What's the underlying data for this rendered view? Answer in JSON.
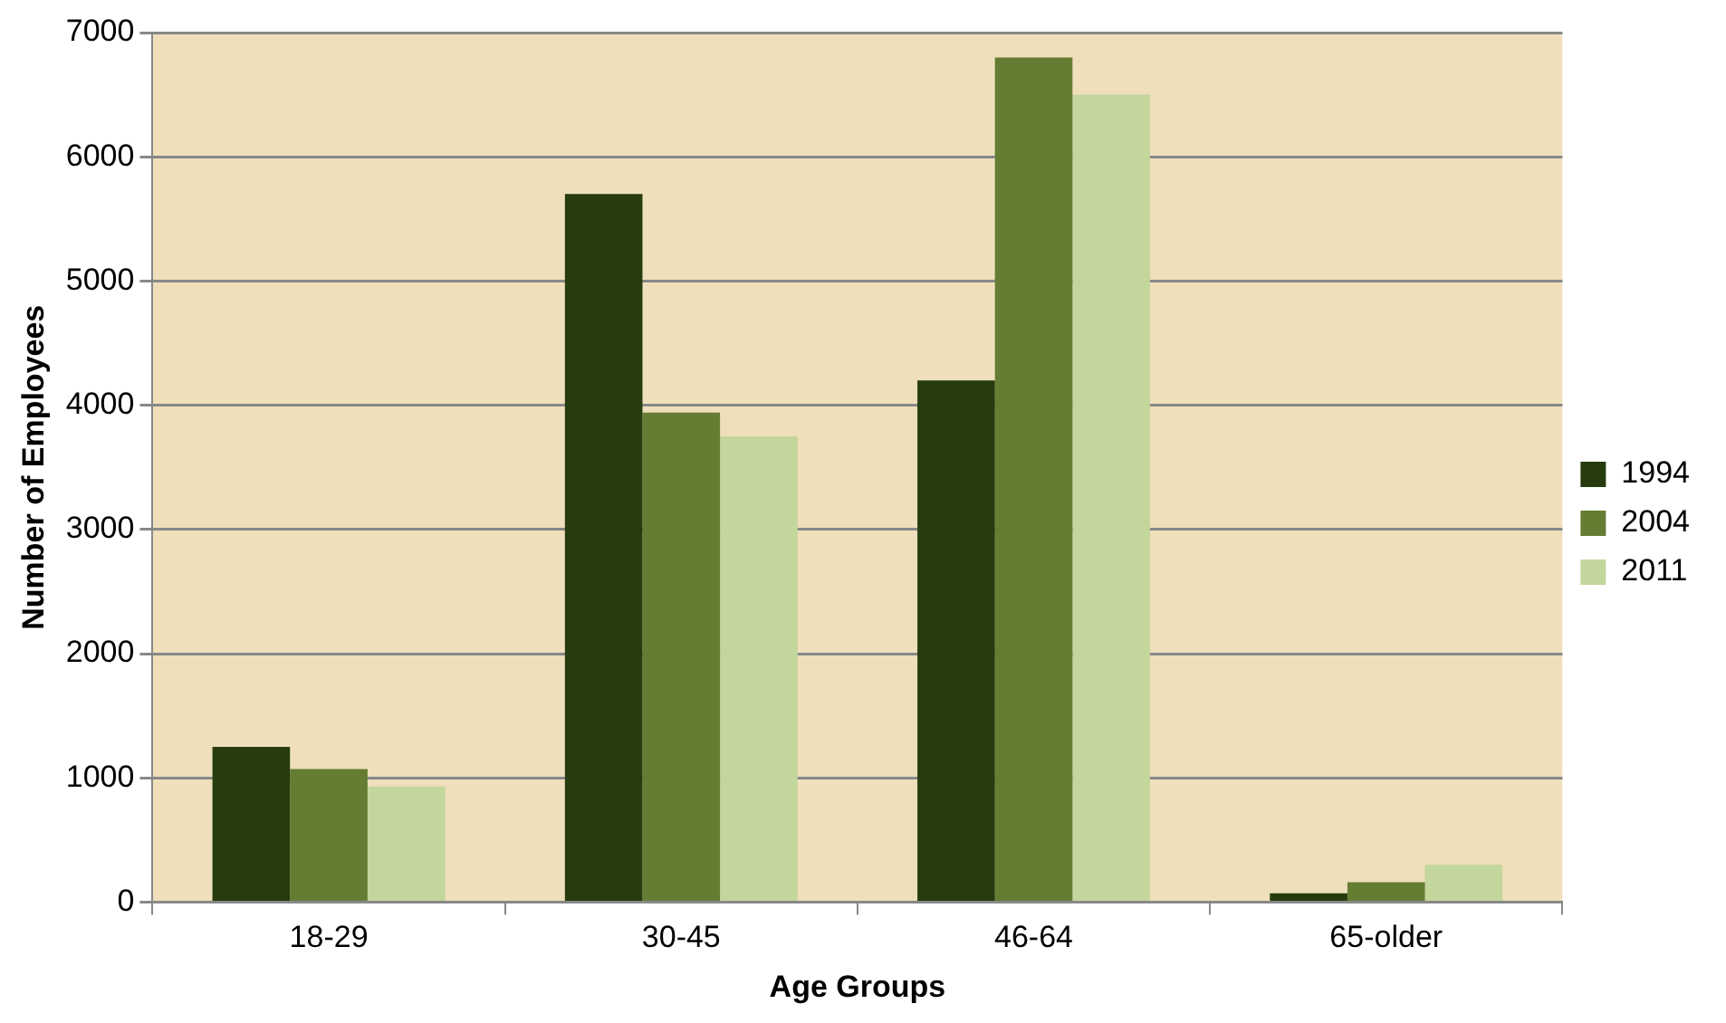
{
  "chart_data": {
    "type": "bar",
    "xlabel": "Age Groups",
    "ylabel": "Number of Employees",
    "categories": [
      "18-29",
      "30-45",
      "46-64",
      "65-older"
    ],
    "series": [
      {
        "name": "1994",
        "color": "#263c0f",
        "values": [
          1250,
          5700,
          4200,
          70
        ]
      },
      {
        "name": "2004",
        "color": "#657d32",
        "values": [
          1070,
          3940,
          6800,
          160
        ]
      },
      {
        "name": "2011",
        "color": "#c3d69b",
        "values": [
          930,
          3750,
          6500,
          300
        ]
      }
    ],
    "ylim": [
      0,
      7000
    ],
    "yticks": [
      0,
      1000,
      2000,
      3000,
      4000,
      5000,
      6000,
      7000
    ],
    "grid": "y",
    "legend": "right"
  }
}
